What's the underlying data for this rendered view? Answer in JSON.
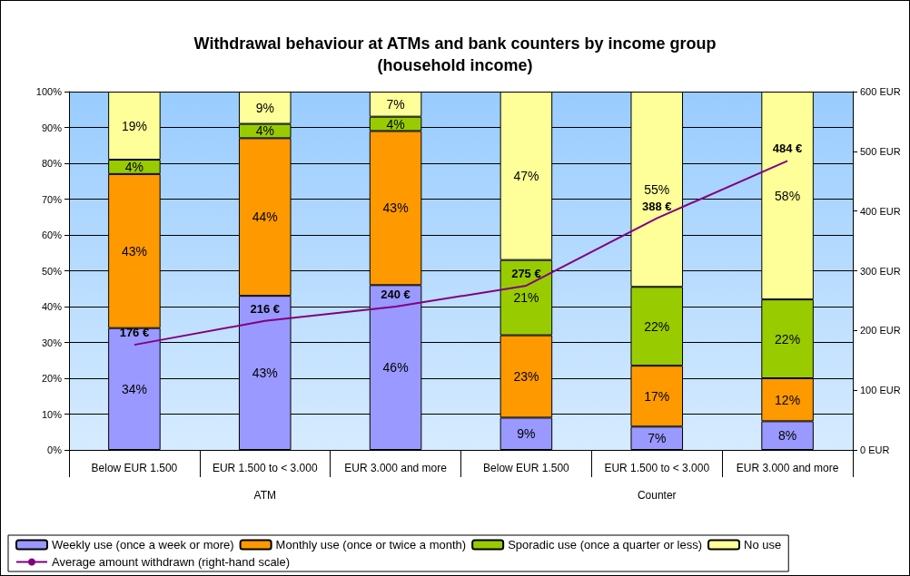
{
  "chart_data": {
    "type": "bar",
    "stacked": true,
    "title": "Withdrawal behaviour at ATMs and bank counters by income group\n(household income)",
    "categories": [
      "Below EUR 1.500",
      "EUR 1.500 to < 3.000",
      "EUR 3.000 and more",
      "Below EUR 1.500",
      "EUR 1.500 to < 3.000",
      "EUR 3.000 and more"
    ],
    "annotations": [
      "ATM",
      "Counter"
    ],
    "series": [
      {
        "name": "Weekly use (once a week or more)",
        "color": "#9999ff",
        "values": [
          34,
          43,
          46,
          9,
          6.5,
          8
        ],
        "value_labels": [
          "34%",
          "43%",
          "46%",
          "9%",
          "7%",
          "8%"
        ]
      },
      {
        "name": "Monthly use (once or twice a month)",
        "color": "#ff9900",
        "values": [
          43,
          44,
          43,
          23,
          17,
          12
        ],
        "value_labels": [
          "43%",
          "44%",
          "43%",
          "23%",
          "17%",
          "12%"
        ]
      },
      {
        "name": "Sporadic use (once a quarter or less)",
        "color": "#99cc00",
        "values": [
          4,
          4,
          4,
          21,
          22,
          22
        ],
        "value_labels": [
          "4%",
          "4%",
          "4%",
          "21%",
          "22%",
          "22%"
        ]
      },
      {
        "name": "No use",
        "color": "#ffff99",
        "values": [
          19,
          9,
          7,
          47,
          54.5,
          58
        ],
        "value_labels": [
          "19%",
          "9%",
          "7%",
          "47%",
          "55%",
          "58%"
        ]
      },
      {
        "name": "Average amount withdrawn (right-hand scale)",
        "type": "line",
        "axis": "y2",
        "color": "#800080",
        "marker": "none",
        "values": [
          176,
          216,
          240,
          275,
          388,
          484
        ],
        "value_labels": [
          "176 €",
          "216 €",
          "240 €",
          "275 €",
          "388 €",
          "484 €"
        ]
      }
    ],
    "ylim": [
      0,
      100
    ],
    "yticks": [
      {
        "value": 0,
        "label": "0%"
      },
      {
        "value": 10,
        "label": "10%"
      },
      {
        "value": 20,
        "label": "20%"
      },
      {
        "value": 30,
        "label": "30%"
      },
      {
        "value": 40,
        "label": "40%"
      },
      {
        "value": 50,
        "label": "50%"
      },
      {
        "value": 60,
        "label": "60%"
      },
      {
        "value": 70,
        "label": "70%"
      },
      {
        "value": 80,
        "label": "80%"
      },
      {
        "value": 90,
        "label": "90%"
      },
      {
        "value": 100,
        "label": "100%"
      }
    ],
    "y2lim": [
      0,
      600
    ],
    "y2ticks": [
      {
        "value": 0,
        "label": "0 EUR"
      },
      {
        "value": 100,
        "label": "100 EUR"
      },
      {
        "value": 200,
        "label": "200 EUR"
      },
      {
        "value": 300,
        "label": "300 EUR"
      },
      {
        "value": 400,
        "label": "400 EUR"
      },
      {
        "value": 500,
        "label": "500 EUR"
      },
      {
        "value": 600,
        "label": "600 EUR"
      }
    ],
    "grid": "y",
    "legend": "bottom"
  }
}
